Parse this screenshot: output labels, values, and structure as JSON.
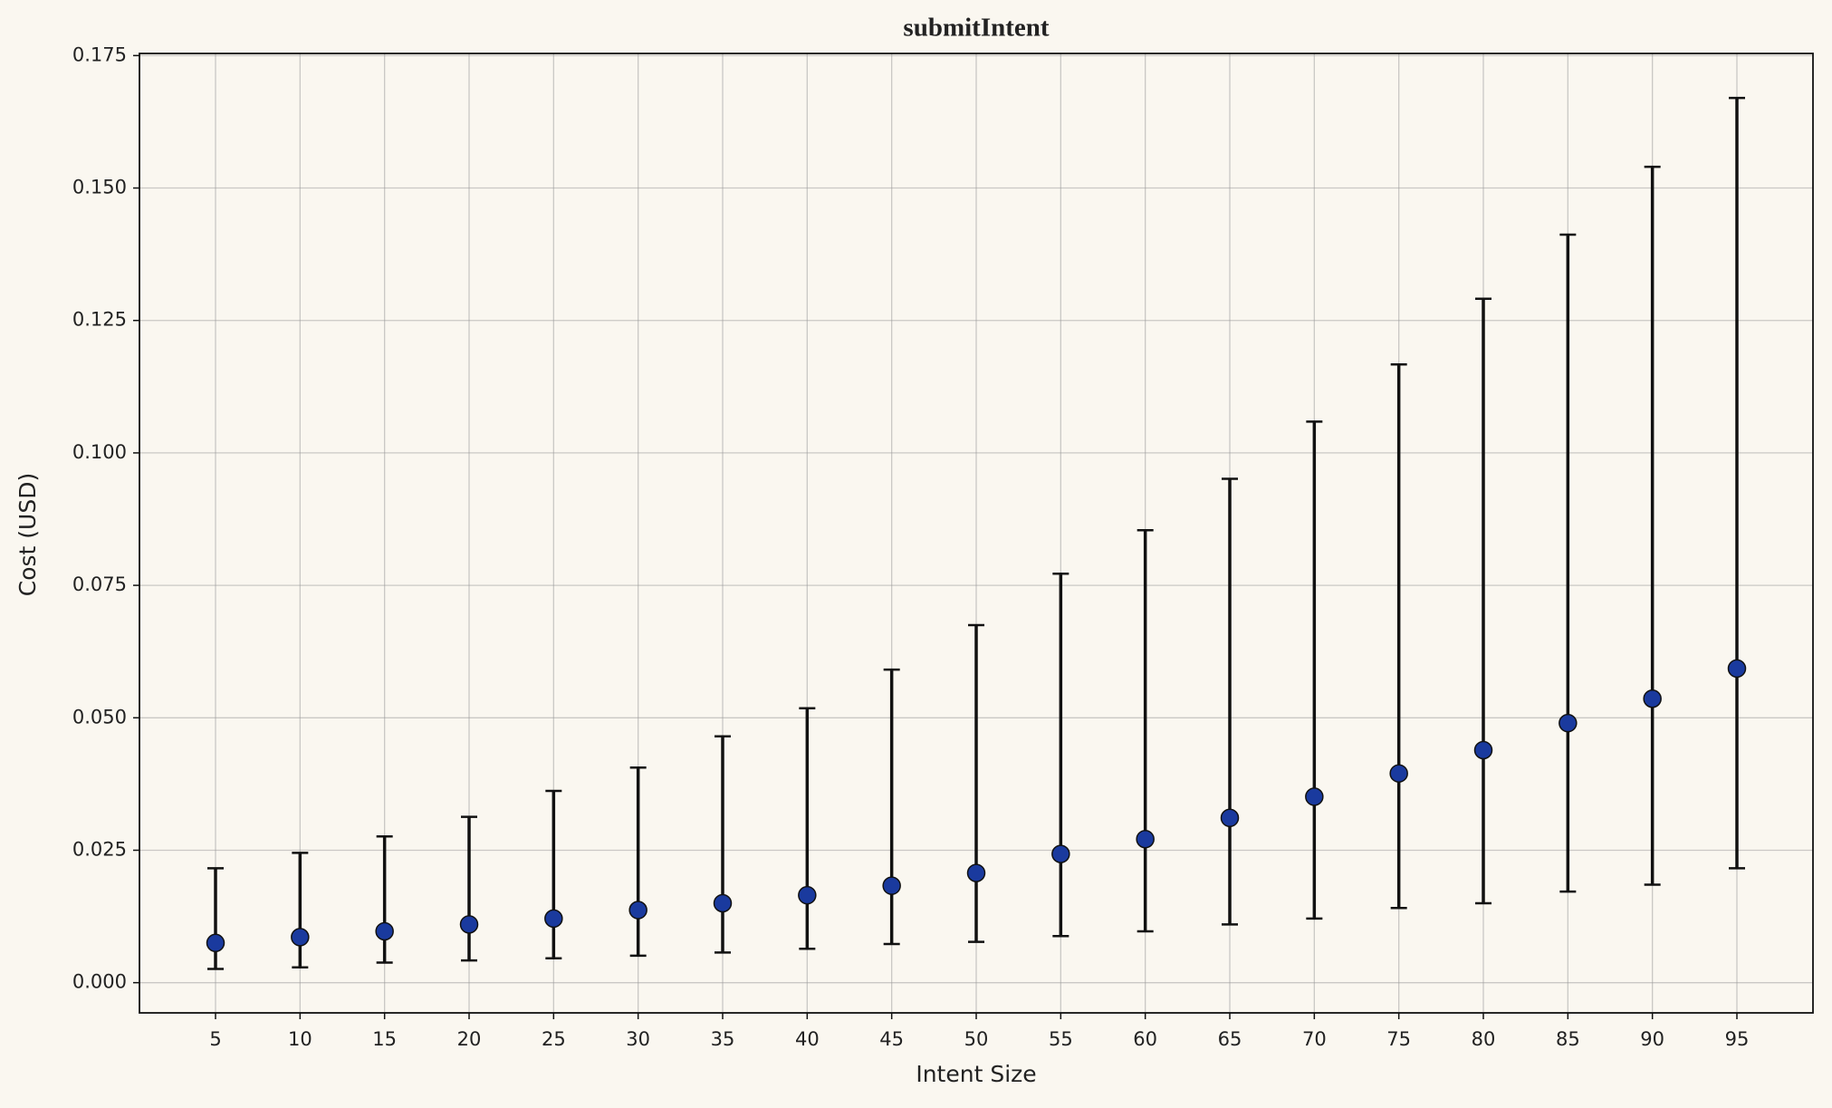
{
  "chart_data": {
    "type": "errorbar",
    "title": "submitIntent",
    "x_label": "Intent Size",
    "y_label": "Cost (USD)",
    "x": [
      5,
      10,
      15,
      20,
      25,
      30,
      35,
      40,
      45,
      50,
      55,
      60,
      65,
      70,
      75,
      80,
      85,
      90,
      95
    ],
    "values": [
      0.0075,
      0.0086,
      0.0097,
      0.011,
      0.0121,
      0.0137,
      0.015,
      0.0165,
      0.0183,
      0.0207,
      0.0243,
      0.0271,
      0.0311,
      0.0351,
      0.0395,
      0.0439,
      0.049,
      0.0536,
      0.0593
    ],
    "lower": [
      0.0026,
      0.0029,
      0.0038,
      0.0042,
      0.0046,
      0.0051,
      0.0057,
      0.0064,
      0.0073,
      0.0077,
      0.0088,
      0.0097,
      0.011,
      0.0121,
      0.0141,
      0.015,
      0.0172,
      0.0185,
      0.0216
    ],
    "upper": [
      0.0216,
      0.0245,
      0.0276,
      0.0313,
      0.0362,
      0.0406,
      0.0465,
      0.0518,
      0.0591,
      0.0675,
      0.0772,
      0.0854,
      0.0951,
      0.1059,
      0.1167,
      0.1291,
      0.1412,
      0.154,
      0.167
    ],
    "color": "#1a3a9e",
    "error_color": "#111111",
    "xlim": [
      0.5,
      99.5
    ],
    "ylim": [
      -0.0057,
      0.1754
    ],
    "xticks": [
      5,
      10,
      15,
      20,
      25,
      30,
      35,
      40,
      45,
      50,
      55,
      60,
      65,
      70,
      75,
      80,
      85,
      90,
      95
    ],
    "yticks": [
      {
        "value": 0,
        "label": "0.000"
      },
      0.025,
      {
        "value": 0.05,
        "label": "0.050"
      },
      0.075,
      {
        "value": 0.1,
        "label": "0.100"
      },
      0.125,
      {
        "value": 0.15,
        "label": "0.150"
      },
      0.175
    ],
    "grid": true
  }
}
